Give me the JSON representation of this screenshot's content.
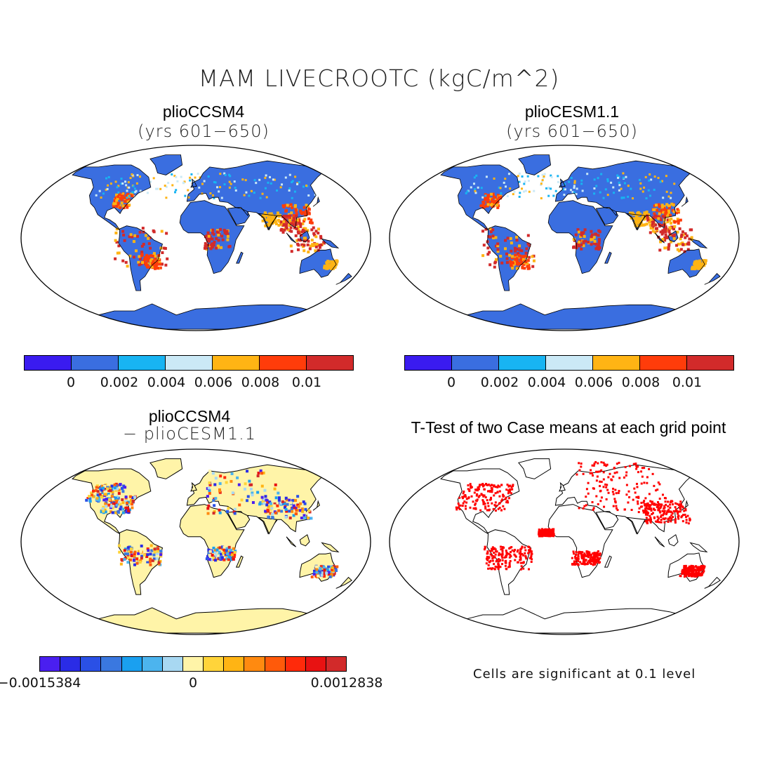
{
  "main_title": "MAM LIVECROOTC (kgC/m^2)",
  "panels": [
    {
      "title": "plioCCSM4",
      "subtitle": "(yrs 601−650)",
      "type": "field",
      "palette": "abs"
    },
    {
      "title": "plioCESM1.1",
      "subtitle": "(yrs 601−650)",
      "type": "field",
      "palette": "abs"
    },
    {
      "title": "plioCCSM4",
      "subtitle": "− plioCESM1.1",
      "type": "difference",
      "palette": "diff"
    },
    {
      "title": "T-Test of two Case means at each grid point",
      "subtitle": "",
      "type": "significance"
    }
  ],
  "colorbar_abs": {
    "colors": [
      "#3a1bf0",
      "#3a6ee0",
      "#18b4f2",
      "#cbe9f6",
      "#ffb414",
      "#ff3c0a",
      "#d22a2a"
    ],
    "tick_labels": [
      "0",
      "0.002",
      "0.004",
      "0.006",
      "0.008",
      "0.01"
    ]
  },
  "colorbar_diff": {
    "colors": [
      "#4a1ff0",
      "#2a2ce6",
      "#2a50e6",
      "#3a78e0",
      "#1aa0f0",
      "#4cb4ee",
      "#a8d8f2",
      "#fff4a8",
      "#ffd43a",
      "#ffb414",
      "#ff8a10",
      "#ff5a0a",
      "#ff2a0a",
      "#e81212",
      "#d22a2a"
    ],
    "tick_labels": [
      "−0.0015384",
      "0",
      "0.0012838"
    ]
  },
  "significance_note": "Cells are significant at 0.1 level",
  "colors": {
    "ocean": "#ffffff",
    "land_base_abs": "#3a6ee0",
    "land_base_diff": "#fff4a8",
    "significant": "#ff0000"
  }
}
